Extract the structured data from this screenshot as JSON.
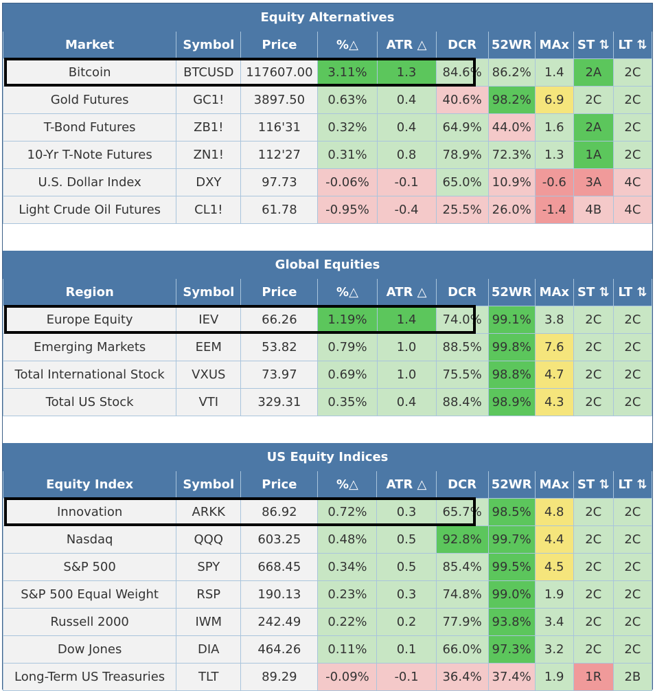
{
  "columns": [
    "%△",
    "ATR △",
    "DCR",
    "52WR",
    "MAx",
    "ST ⇅",
    "LT ⇅"
  ],
  "symbol_label": "Symbol",
  "price_label": "Price",
  "sections": [
    {
      "title": "Equity Alternatives",
      "first_col_label": "Market",
      "rows": [
        {
          "name": "Bitcoin",
          "symbol": "BTCUSD",
          "price": "117607.00",
          "pct": "3.11%",
          "atr": "1.3",
          "dcr": "84.6%",
          "wr": "86.2%",
          "max": "1.4",
          "st": "2A",
          "lt": "2C",
          "colors": [
            "g2",
            "g2",
            "g1",
            "g1",
            "g1",
            "g2",
            "g1"
          ]
        },
        {
          "name": "Gold Futures",
          "symbol": "GC1!",
          "price": "3897.50",
          "pct": "0.63%",
          "atr": "0.4",
          "dcr": "40.6%",
          "wr": "98.2%",
          "max": "6.9",
          "st": "2C",
          "lt": "2C",
          "colors": [
            "g1",
            "g1",
            "r1",
            "g2",
            "y1",
            "g1",
            "g1"
          ]
        },
        {
          "name": "T-Bond Futures",
          "symbol": "ZB1!",
          "price": "116'31",
          "pct": "0.32%",
          "atr": "0.4",
          "dcr": "64.9%",
          "wr": "44.0%",
          "max": "1.6",
          "st": "2A",
          "lt": "2C",
          "colors": [
            "g1",
            "g1",
            "g1",
            "r1",
            "g1",
            "g2",
            "g1"
          ]
        },
        {
          "name": "10-Yr T-Note Futures",
          "symbol": "ZN1!",
          "price": "112'27",
          "pct": "0.31%",
          "atr": "0.8",
          "dcr": "78.9%",
          "wr": "72.3%",
          "max": "1.3",
          "st": "1A",
          "lt": "2C",
          "colors": [
            "g1",
            "g1",
            "g1",
            "g1",
            "g1",
            "g2",
            "g1"
          ]
        },
        {
          "name": "U.S. Dollar Index",
          "symbol": "DXY",
          "price": "97.73",
          "pct": "-0.06%",
          "atr": "-0.1",
          "dcr": "65.0%",
          "wr": "10.9%",
          "max": "-0.6",
          "st": "3A",
          "lt": "4C",
          "colors": [
            "r1",
            "r1",
            "g1",
            "r1",
            "r2",
            "r2",
            "r1"
          ]
        },
        {
          "name": "Light Crude Oil Futures",
          "symbol": "CL1!",
          "price": "61.78",
          "pct": "-0.95%",
          "atr": "-0.4",
          "dcr": "25.5%",
          "wr": "26.0%",
          "max": "-1.4",
          "st": "4B",
          "lt": "4C",
          "colors": [
            "r1",
            "r1",
            "r1",
            "r1",
            "r2",
            "r1",
            "r1"
          ]
        }
      ]
    },
    {
      "title": "Global Equities",
      "first_col_label": "Region",
      "rows": [
        {
          "name": "Europe Equity",
          "symbol": "IEV",
          "price": "66.26",
          "pct": "1.19%",
          "atr": "1.4",
          "dcr": "74.0%",
          "wr": "99.1%",
          "max": "3.8",
          "st": "2C",
          "lt": "2C",
          "colors": [
            "g2",
            "g2",
            "g1",
            "g2",
            "g1",
            "g1",
            "g1"
          ]
        },
        {
          "name": "Emerging Markets",
          "symbol": "EEM",
          "price": "53.82",
          "pct": "0.79%",
          "atr": "1.0",
          "dcr": "88.5%",
          "wr": "99.8%",
          "max": "7.6",
          "st": "2C",
          "lt": "2C",
          "colors": [
            "g1",
            "g1",
            "g1",
            "g2",
            "y1",
            "g1",
            "g1"
          ]
        },
        {
          "name": "Total International Stock",
          "symbol": "VXUS",
          "price": "73.97",
          "pct": "0.69%",
          "atr": "1.0",
          "dcr": "75.5%",
          "wr": "98.8%",
          "max": "4.7",
          "st": "2C",
          "lt": "2C",
          "colors": [
            "g1",
            "g1",
            "g1",
            "g2",
            "y1",
            "g1",
            "g1"
          ]
        },
        {
          "name": "Total US Stock",
          "symbol": "VTI",
          "price": "329.31",
          "pct": "0.35%",
          "atr": "0.4",
          "dcr": "88.4%",
          "wr": "98.9%",
          "max": "4.3",
          "st": "2C",
          "lt": "2C",
          "colors": [
            "g1",
            "g1",
            "g1",
            "g2",
            "y1",
            "g1",
            "g1"
          ]
        }
      ]
    },
    {
      "title": "US Equity Indices",
      "first_col_label": "Equity Index",
      "rows": [
        {
          "name": "Innovation",
          "symbol": "ARKK",
          "price": "86.92",
          "pct": "0.72%",
          "atr": "0.3",
          "dcr": "65.7%",
          "wr": "98.5%",
          "max": "4.8",
          "st": "2C",
          "lt": "2C",
          "colors": [
            "g1",
            "g1",
            "g1",
            "g2",
            "y1",
            "g1",
            "g1"
          ]
        },
        {
          "name": "Nasdaq",
          "symbol": "QQQ",
          "price": "603.25",
          "pct": "0.48%",
          "atr": "0.5",
          "dcr": "92.8%",
          "wr": "99.7%",
          "max": "4.4",
          "st": "2C",
          "lt": "2C",
          "colors": [
            "g1",
            "g1",
            "g2",
            "g2",
            "y1",
            "g1",
            "g1"
          ]
        },
        {
          "name": "S&P 500",
          "symbol": "SPY",
          "price": "668.45",
          "pct": "0.34%",
          "atr": "0.5",
          "dcr": "85.4%",
          "wr": "99.5%",
          "max": "4.5",
          "st": "2C",
          "lt": "2C",
          "colors": [
            "g1",
            "g1",
            "g1",
            "g2",
            "y1",
            "g1",
            "g1"
          ]
        },
        {
          "name": "S&P 500 Equal Weight",
          "symbol": "RSP",
          "price": "190.13",
          "pct": "0.23%",
          "atr": "0.3",
          "dcr": "74.8%",
          "wr": "99.0%",
          "max": "1.9",
          "st": "2C",
          "lt": "2C",
          "colors": [
            "g1",
            "g1",
            "g1",
            "g2",
            "g1",
            "g1",
            "g1"
          ]
        },
        {
          "name": "Russell 2000",
          "symbol": "IWM",
          "price": "242.49",
          "pct": "0.22%",
          "atr": "0.2",
          "dcr": "77.9%",
          "wr": "93.8%",
          "max": "3.4",
          "st": "2C",
          "lt": "2C",
          "colors": [
            "g1",
            "g1",
            "g1",
            "g2",
            "g1",
            "g1",
            "g1"
          ]
        },
        {
          "name": "Dow Jones",
          "symbol": "DIA",
          "price": "464.26",
          "pct": "0.11%",
          "atr": "0.1",
          "dcr": "66.0%",
          "wr": "97.3%",
          "max": "3.2",
          "st": "2C",
          "lt": "2C",
          "colors": [
            "g1",
            "g1",
            "g1",
            "g2",
            "g1",
            "g1",
            "g1"
          ]
        },
        {
          "name": "Long-Term US Treasuries",
          "symbol": "TLT",
          "price": "89.29",
          "pct": "-0.09%",
          "atr": "-0.1",
          "dcr": "36.4%",
          "wr": "37.4%",
          "max": "1.9",
          "st": "1R",
          "lt": "2B",
          "colors": [
            "r1",
            "r1",
            "r1",
            "r1",
            "g1",
            "r2",
            "g1"
          ]
        }
      ]
    }
  ]
}
